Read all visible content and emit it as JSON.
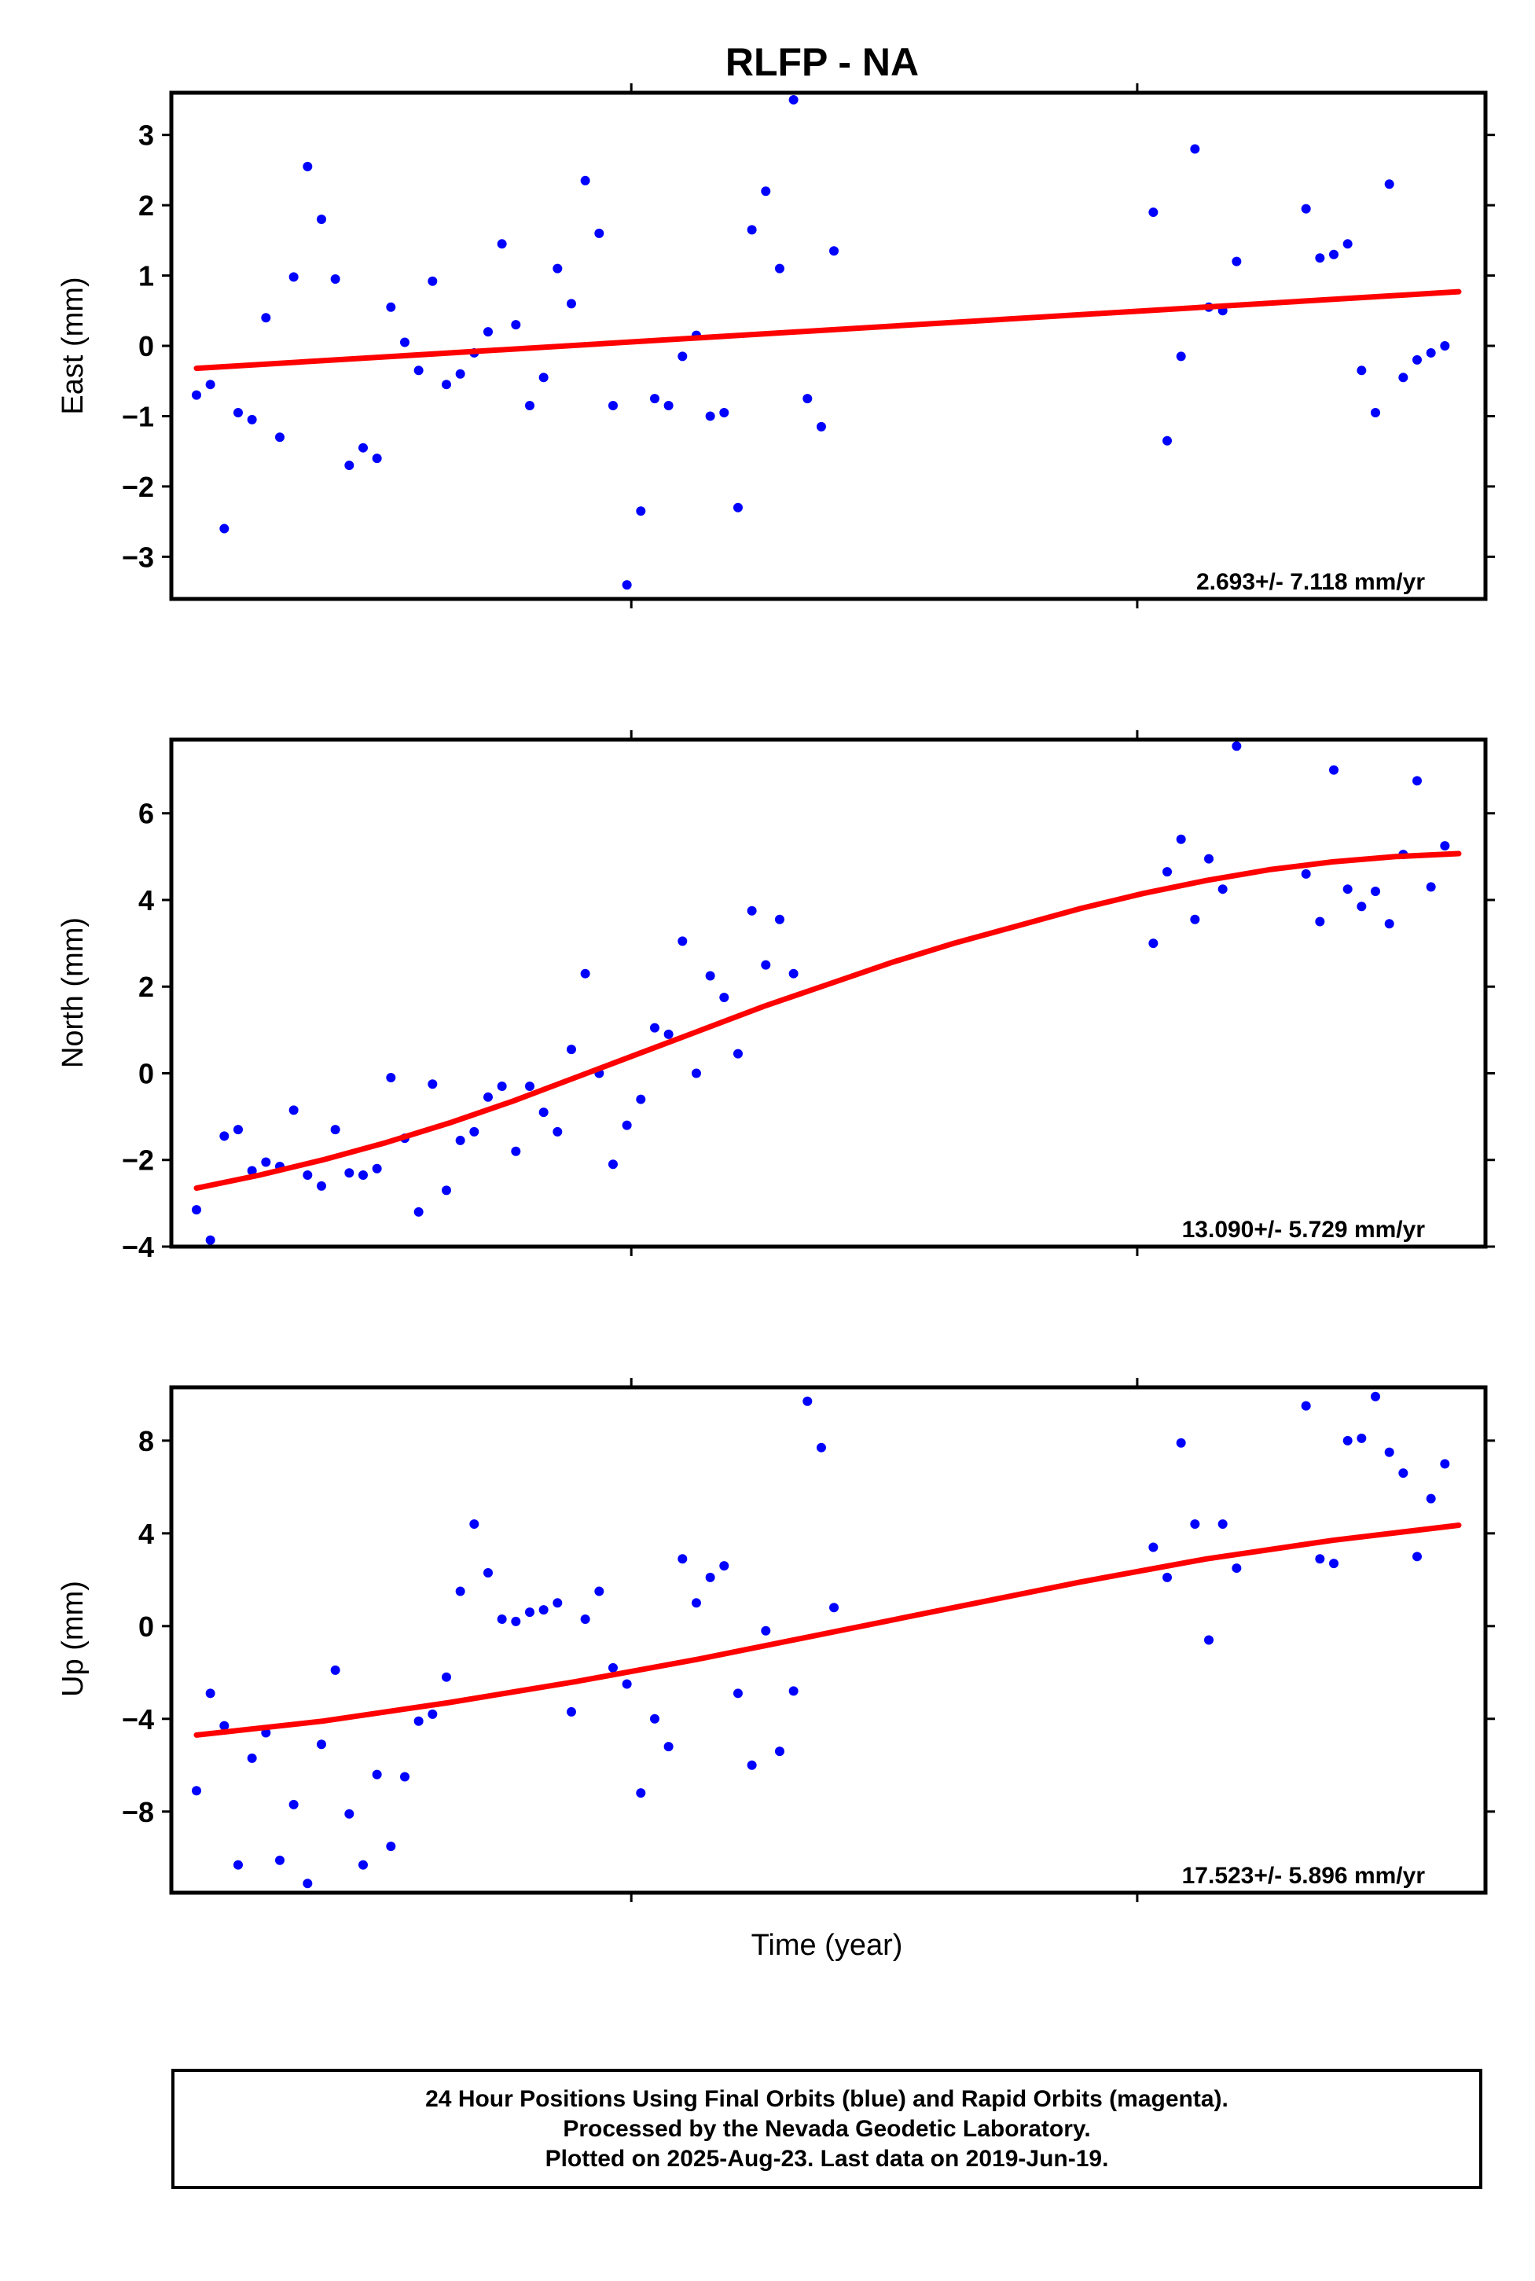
{
  "title": "RLFP - NA",
  "x_axis_label": "Time (year)",
  "colors": {
    "points": "#0000ff",
    "fit": "#ff0000",
    "frame": "#000000"
  },
  "footer": {
    "line1": "24 Hour Positions Using Final Orbits (blue) and Rapid Orbits (magenta).",
    "line2": "Processed by the Nevada Geodetic Laboratory.",
    "line3": "Plotted on 2025-Aug-23. Last data on 2019-Jun-19."
  },
  "chart_data": [
    {
      "type": "scatter",
      "ylabel": "East (mm)",
      "ylim": [
        -3.6,
        3.6
      ],
      "yticks": [
        -3,
        -2,
        -1,
        0,
        1,
        2,
        3
      ],
      "rate_text": "2.693+/- 7.118 mm/yr",
      "x": [
        0.0,
        0.011,
        0.022,
        0.033,
        0.044,
        0.055,
        0.066,
        0.077,
        0.088,
        0.099,
        0.11,
        0.121,
        0.132,
        0.143,
        0.154,
        0.165,
        0.176,
        0.187,
        0.198,
        0.209,
        0.22,
        0.231,
        0.242,
        0.253,
        0.264,
        0.275,
        0.286,
        0.297,
        0.308,
        0.319,
        0.33,
        0.341,
        0.352,
        0.363,
        0.374,
        0.385,
        0.396,
        0.407,
        0.418,
        0.429,
        0.44,
        0.451,
        0.462,
        0.473,
        0.484,
        0.495,
        0.505,
        0.758,
        0.769,
        0.78,
        0.791,
        0.802,
        0.813,
        0.824,
        0.879,
        0.89,
        0.901,
        0.912,
        0.923,
        0.934,
        0.945,
        0.956,
        0.967,
        0.978,
        0.989
      ],
      "y": [
        -0.7,
        -0.55,
        -2.6,
        -0.95,
        -1.05,
        0.4,
        -1.3,
        0.98,
        2.55,
        1.8,
        0.95,
        -1.7,
        -1.45,
        -1.6,
        0.55,
        0.05,
        -0.35,
        0.92,
        -0.55,
        -0.4,
        -0.1,
        0.2,
        1.45,
        0.3,
        -0.85,
        -0.45,
        1.1,
        0.6,
        2.35,
        1.6,
        -0.85,
        -3.4,
        -2.35,
        -0.75,
        -0.85,
        -0.15,
        0.15,
        -1.0,
        -0.95,
        -2.3,
        1.65,
        2.2,
        1.1,
        3.5,
        -0.75,
        -1.15,
        1.35,
        1.9,
        -1.35,
        -0.15,
        2.8,
        0.55,
        0.5,
        1.2,
        1.95,
        1.25,
        1.3,
        1.45,
        -0.35,
        -0.95,
        2.3,
        -0.45,
        -0.2,
        -0.1,
        0.0
      ],
      "fit": {
        "x": [
          0,
          1
        ],
        "y": [
          -0.32,
          0.77
        ]
      }
    },
    {
      "type": "scatter",
      "ylabel": "North (mm)",
      "ylim": [
        -4.0,
        7.7
      ],
      "yticks": [
        -4,
        -2,
        0,
        2,
        4,
        6
      ],
      "rate_text": "13.090+/- 5.729 mm/yr",
      "x": [
        0.0,
        0.011,
        0.022,
        0.033,
        0.044,
        0.055,
        0.066,
        0.077,
        0.088,
        0.099,
        0.11,
        0.121,
        0.132,
        0.143,
        0.154,
        0.165,
        0.176,
        0.187,
        0.198,
        0.209,
        0.22,
        0.231,
        0.242,
        0.253,
        0.264,
        0.275,
        0.286,
        0.297,
        0.308,
        0.319,
        0.33,
        0.341,
        0.352,
        0.363,
        0.374,
        0.385,
        0.396,
        0.407,
        0.418,
        0.429,
        0.44,
        0.451,
        0.462,
        0.473,
        0.758,
        0.769,
        0.78,
        0.791,
        0.802,
        0.813,
        0.824,
        0.879,
        0.89,
        0.901,
        0.912,
        0.923,
        0.934,
        0.945,
        0.956,
        0.967,
        0.978,
        0.989
      ],
      "y": [
        -3.15,
        -3.85,
        -1.45,
        -1.3,
        -2.25,
        -2.05,
        -2.15,
        -0.85,
        -2.35,
        -2.6,
        -1.3,
        -2.3,
        -2.35,
        -2.2,
        -0.1,
        -1.5,
        -3.2,
        -0.25,
        -2.7,
        -1.55,
        -1.35,
        -0.55,
        -0.3,
        -1.8,
        -0.3,
        -0.9,
        -1.35,
        0.55,
        2.3,
        0.0,
        -2.1,
        -1.2,
        -0.6,
        1.05,
        0.9,
        3.05,
        0.0,
        2.25,
        1.75,
        0.45,
        3.75,
        2.5,
        3.55,
        2.3,
        3.0,
        4.65,
        5.4,
        3.55,
        4.95,
        4.25,
        7.55,
        4.6,
        3.5,
        7.0,
        4.25,
        3.85,
        4.2,
        3.45,
        5.05,
        6.75,
        4.3,
        5.25
      ],
      "fit": {
        "x": [
          0,
          0.05,
          0.1,
          0.15,
          0.2,
          0.25,
          0.3,
          0.35,
          0.4,
          0.45,
          0.5,
          0.55,
          0.6,
          0.65,
          0.7,
          0.75,
          0.8,
          0.85,
          0.9,
          0.95,
          1.0
        ],
        "y": [
          -2.65,
          -2.35,
          -2.0,
          -1.6,
          -1.15,
          -0.65,
          -0.1,
          0.45,
          1.0,
          1.55,
          2.05,
          2.55,
          3.0,
          3.4,
          3.8,
          4.15,
          4.45,
          4.7,
          4.88,
          5.0,
          5.07
        ]
      }
    },
    {
      "type": "scatter",
      "ylabel": "Up (mm)",
      "ylim": [
        -11.5,
        10.3
      ],
      "yticks": [
        -8,
        -4,
        0,
        4,
        8
      ],
      "rate_text": "17.523+/- 5.896 mm/yr",
      "x": [
        0.0,
        0.011,
        0.022,
        0.033,
        0.044,
        0.055,
        0.066,
        0.077,
        0.088,
        0.099,
        0.11,
        0.121,
        0.132,
        0.143,
        0.154,
        0.165,
        0.176,
        0.187,
        0.198,
        0.209,
        0.22,
        0.231,
        0.242,
        0.253,
        0.264,
        0.275,
        0.286,
        0.297,
        0.308,
        0.319,
        0.33,
        0.341,
        0.352,
        0.363,
        0.374,
        0.385,
        0.396,
        0.407,
        0.418,
        0.429,
        0.44,
        0.451,
        0.462,
        0.473,
        0.484,
        0.495,
        0.505,
        0.758,
        0.769,
        0.78,
        0.791,
        0.802,
        0.813,
        0.824,
        0.879,
        0.89,
        0.901,
        0.912,
        0.923,
        0.934,
        0.945,
        0.956,
        0.967,
        0.978,
        0.989
      ],
      "y": [
        -7.1,
        -2.9,
        -4.3,
        -10.3,
        -5.7,
        -4.6,
        -10.1,
        -7.7,
        -11.1,
        -5.1,
        -1.9,
        -8.1,
        -10.3,
        -6.4,
        -9.5,
        -6.5,
        -4.1,
        -3.8,
        -2.2,
        1.5,
        4.4,
        2.3,
        0.3,
        0.2,
        0.6,
        0.7,
        1.0,
        -3.7,
        0.3,
        1.5,
        -1.8,
        -2.5,
        -7.2,
        -4.0,
        -5.2,
        2.9,
        1.0,
        2.1,
        2.6,
        -2.9,
        -6.0,
        -0.2,
        -5.4,
        -2.8,
        9.7,
        7.7,
        0.8,
        3.4,
        2.1,
        7.9,
        4.4,
        -0.6,
        4.4,
        2.5,
        9.5,
        2.9,
        2.7,
        8.0,
        8.1,
        9.9,
        7.5,
        6.6,
        3.0,
        5.5,
        7.0
      ],
      "fit": {
        "x": [
          0,
          0.1,
          0.2,
          0.3,
          0.4,
          0.5,
          0.6,
          0.7,
          0.8,
          0.9,
          1.0
        ],
        "y": [
          -4.7,
          -4.1,
          -3.3,
          -2.4,
          -1.4,
          -0.3,
          0.8,
          1.9,
          2.9,
          3.7,
          4.35
        ]
      }
    }
  ]
}
